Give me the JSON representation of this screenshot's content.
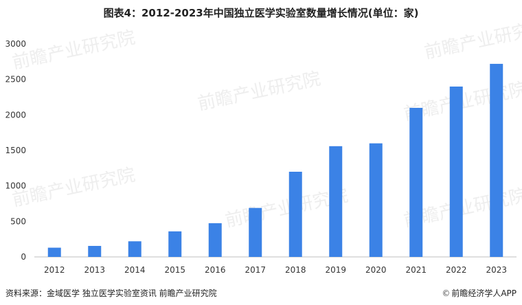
{
  "title": "图表4：2012-2023年中国独立医学实验室数量增长情况(单位：家)",
  "footer": {
    "source": "资料来源：金域医学 独立医学实验室资讯 前瞻产业研究院",
    "credit": "前瞻经济学人APP"
  },
  "watermark": "前瞻产业研究院",
  "colors": {
    "bar": "#3b82e6",
    "axis": "#bfbfbf",
    "text": "#333333"
  },
  "chart_data": {
    "type": "bar",
    "title": "图表4：2012-2023年中国独立医学实验室数量增长情况(单位：家)",
    "xlabel": "",
    "ylabel": "",
    "categories": [
      "2012",
      "2013",
      "2014",
      "2015",
      "2016",
      "2017",
      "2018",
      "2019",
      "2020",
      "2021",
      "2022",
      "2023"
    ],
    "values": [
      130,
      155,
      220,
      360,
      475,
      690,
      1200,
      1560,
      1600,
      2100,
      2400,
      2720
    ],
    "ylim": [
      0,
      3000
    ],
    "yticks": [
      0,
      500,
      1000,
      1500,
      2000,
      2500,
      3000
    ],
    "grid": false,
    "legend": "none"
  }
}
